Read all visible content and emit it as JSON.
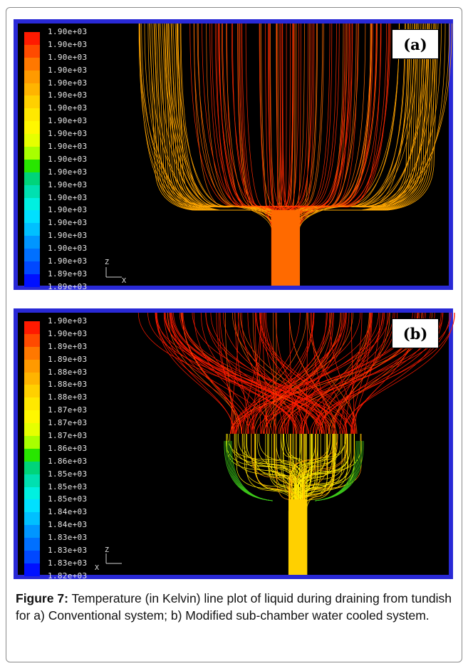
{
  "figure": {
    "label": "Figure 7:",
    "caption": " Temperature (in Kelvin) line plot of liquid during draining from tundish for a) Conventional system; b) Modified sub-chamber water cooled system."
  },
  "panels": [
    {
      "badge": "(a)",
      "axis_z": "Z",
      "axis_x": "X",
      "colorbar_ticks": [
        "1.90e+03",
        "1.90e+03",
        "1.90e+03",
        "1.90e+03",
        "1.90e+03",
        "1.90e+03",
        "1.90e+03",
        "1.90e+03",
        "1.90e+03",
        "1.90e+03",
        "1.90e+03",
        "1.90e+03",
        "1.90e+03",
        "1.90e+03",
        "1.90e+03",
        "1.90e+03",
        "1.90e+03",
        "1.90e+03",
        "1.90e+03",
        "1.89e+03",
        "1.89e+03"
      ]
    },
    {
      "badge": "(b)",
      "axis_z": "Z",
      "axis_x": "X",
      "colorbar_ticks": [
        "1.90e+03",
        "1.90e+03",
        "1.89e+03",
        "1.89e+03",
        "1.88e+03",
        "1.88e+03",
        "1.88e+03",
        "1.87e+03",
        "1.87e+03",
        "1.87e+03",
        "1.86e+03",
        "1.86e+03",
        "1.85e+03",
        "1.85e+03",
        "1.85e+03",
        "1.84e+03",
        "1.84e+03",
        "1.83e+03",
        "1.83e+03",
        "1.83e+03",
        "1.82e+03"
      ]
    }
  ],
  "colorbar_colors": [
    "#ff1a00",
    "#ff4a00",
    "#ff7800",
    "#ff9a00",
    "#ffb400",
    "#ffd000",
    "#ffe800",
    "#fff700",
    "#e6ff00",
    "#a8ff00",
    "#28e600",
    "#00d47a",
    "#00e0b0",
    "#00f0e0",
    "#00e0ff",
    "#00c0ff",
    "#0096ff",
    "#0070ff",
    "#0048ff",
    "#0010ff"
  ]
}
